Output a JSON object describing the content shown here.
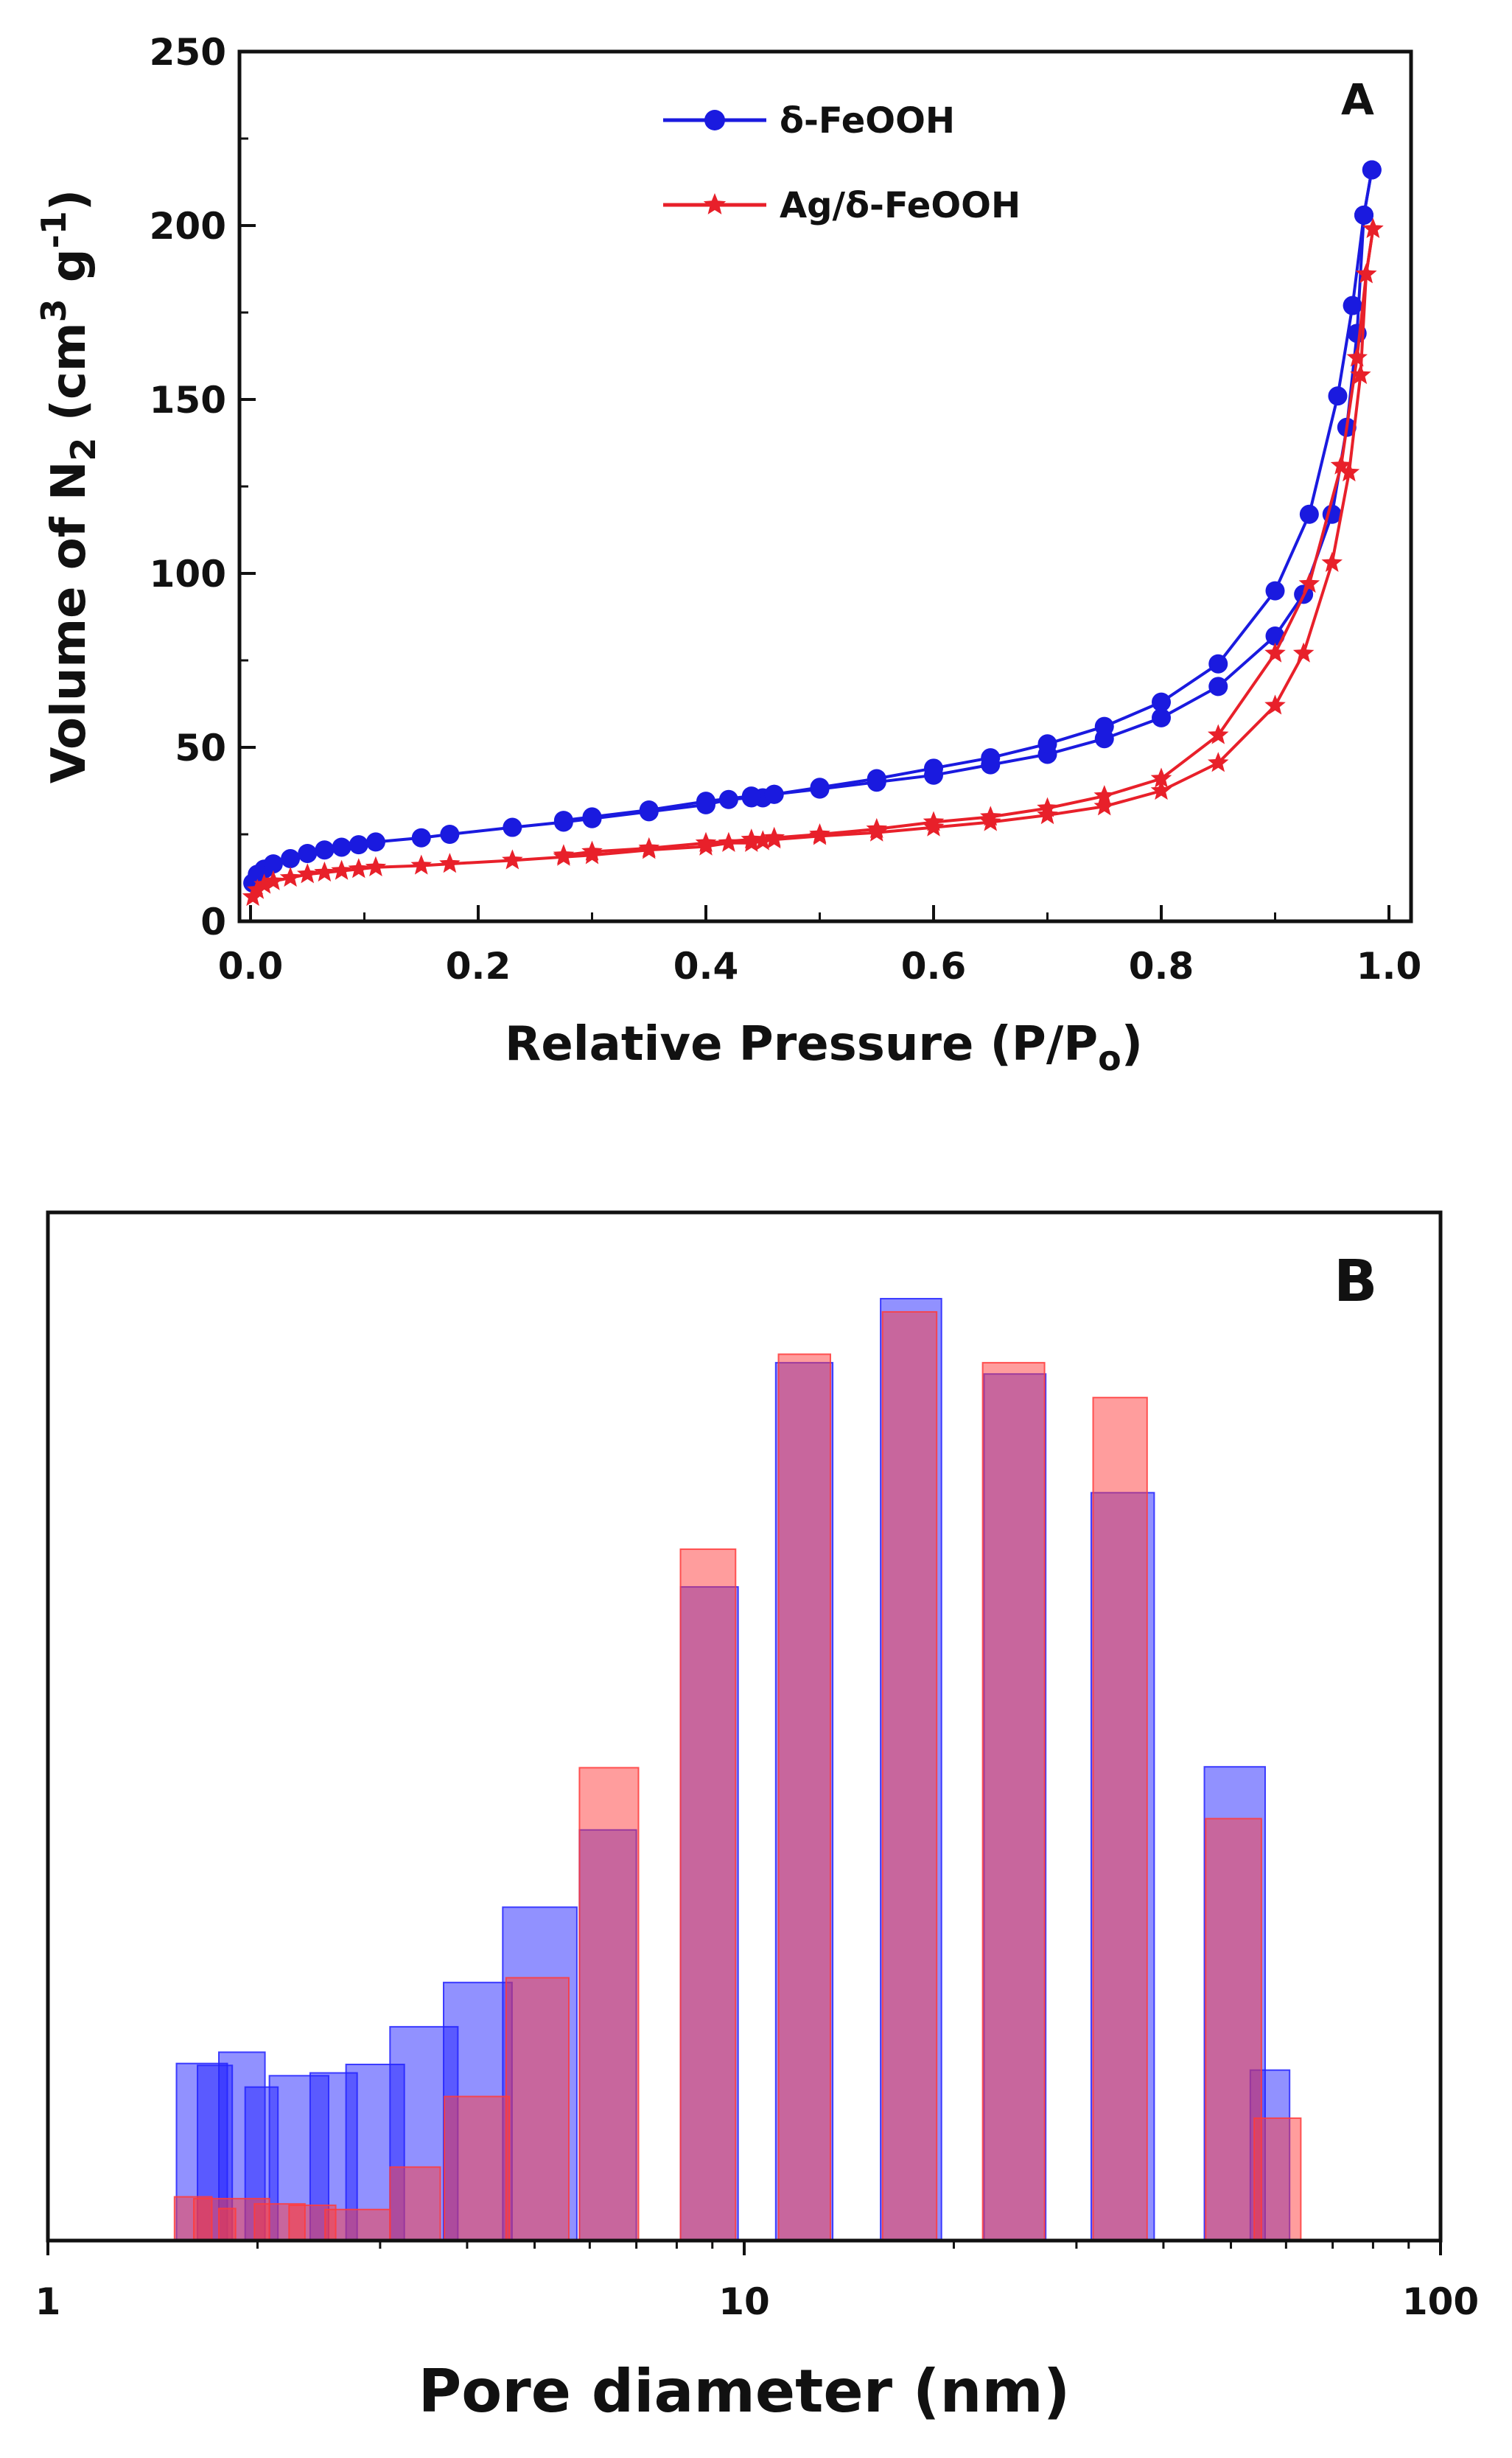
{
  "chart_data": [
    {
      "panel": "A",
      "type": "line",
      "xlabel_main": "Relative Pressure (P/P",
      "xlabel_sub": "o",
      "xlabel_end": ")",
      "ylabel_main": "Volume of N",
      "ylabel_sub": "2",
      "ylabel_mid": " (cm",
      "ylabel_sup": "3",
      "ylabel_g": " g",
      "ylabel_sup2": "-1",
      "ylabel_end": ")",
      "xlim": [
        0.0,
        1.0
      ],
      "ylim": [
        0,
        250
      ],
      "x_ticks": [
        {
          "value": 0.0,
          "label": "0.0"
        },
        {
          "value": 0.2,
          "label": "0.2"
        },
        {
          "value": 0.4,
          "label": "0.4"
        },
        {
          "value": 0.6,
          "label": "0.6"
        },
        {
          "value": 0.8,
          "label": "0.8"
        },
        {
          "value": 1.0,
          "label": "1.0"
        }
      ],
      "y_ticks": [
        {
          "value": 0,
          "label": "0"
        },
        {
          "value": 50,
          "label": "50"
        },
        {
          "value": 100,
          "label": "100"
        },
        {
          "value": 150,
          "label": "150"
        },
        {
          "value": 200,
          "label": "200"
        },
        {
          "value": 250,
          "label": "250"
        }
      ],
      "series": [
        {
          "name": "δ-FeOOH",
          "color": "#1a1adf",
          "marker": "circle",
          "adsorption": [
            [
              0.002,
              11
            ],
            [
              0.006,
              13.5
            ],
            [
              0.012,
              15
            ],
            [
              0.02,
              16.5
            ],
            [
              0.035,
              18
            ],
            [
              0.05,
              19.5
            ],
            [
              0.065,
              20.5
            ],
            [
              0.08,
              21.3
            ],
            [
              0.095,
              22
            ],
            [
              0.11,
              22.8
            ],
            [
              0.15,
              24
            ],
            [
              0.175,
              25
            ],
            [
              0.23,
              27
            ],
            [
              0.275,
              28.5
            ],
            [
              0.3,
              29.5
            ],
            [
              0.35,
              31.5
            ],
            [
              0.4,
              33.5
            ],
            [
              0.42,
              35
            ],
            [
              0.44,
              35.5
            ],
            [
              0.45,
              35.5
            ],
            [
              0.46,
              36.5
            ],
            [
              0.5,
              38
            ],
            [
              0.55,
              40
            ],
            [
              0.6,
              42
            ],
            [
              0.65,
              45
            ],
            [
              0.7,
              48
            ],
            [
              0.75,
              52.5
            ],
            [
              0.8,
              58.5
            ],
            [
              0.85,
              67.5
            ],
            [
              0.9,
              82
            ],
            [
              0.925,
              94
            ],
            [
              0.95,
              117
            ],
            [
              0.963,
              142
            ],
            [
              0.972,
              169
            ],
            [
              0.978,
              203
            ],
            [
              0.985,
              216
            ]
          ],
          "desorption": [
            [
              0.985,
              216
            ],
            [
              0.978,
              203
            ],
            [
              0.968,
              177
            ],
            [
              0.955,
              151
            ],
            [
              0.93,
              117
            ],
            [
              0.9,
              95
            ],
            [
              0.85,
              74
            ],
            [
              0.8,
              63
            ],
            [
              0.75,
              56
            ],
            [
              0.7,
              51
            ],
            [
              0.65,
              47
            ],
            [
              0.6,
              44
            ],
            [
              0.55,
              41
            ],
            [
              0.5,
              38.5
            ],
            [
              0.46,
              36.5
            ],
            [
              0.44,
              36
            ],
            [
              0.4,
              34.5
            ],
            [
              0.35,
              32
            ],
            [
              0.3,
              30
            ],
            [
              0.275,
              29
            ]
          ]
        },
        {
          "name": "Ag/δ-FeOOH",
          "color": "#e8202a",
          "marker": "star",
          "adsorption": [
            [
              0.002,
              7
            ],
            [
              0.006,
              9
            ],
            [
              0.012,
              10.5
            ],
            [
              0.02,
              11.5
            ],
            [
              0.035,
              12.5
            ],
            [
              0.05,
              13.5
            ],
            [
              0.065,
              14
            ],
            [
              0.08,
              14.5
            ],
            [
              0.095,
              15
            ],
            [
              0.11,
              15.5
            ],
            [
              0.15,
              16
            ],
            [
              0.175,
              16.5
            ],
            [
              0.23,
              17.5
            ],
            [
              0.275,
              18.5
            ],
            [
              0.3,
              19
            ],
            [
              0.35,
              20.5
            ],
            [
              0.4,
              21.5
            ],
            [
              0.42,
              22.5
            ],
            [
              0.44,
              22.5
            ],
            [
              0.45,
              23
            ],
            [
              0.46,
              23.5
            ],
            [
              0.5,
              24.5
            ],
            [
              0.55,
              25.5
            ],
            [
              0.6,
              27
            ],
            [
              0.65,
              28.5
            ],
            [
              0.7,
              30.5
            ],
            [
              0.75,
              33
            ],
            [
              0.8,
              37.5
            ],
            [
              0.85,
              45.5
            ],
            [
              0.9,
              62
            ],
            [
              0.925,
              77
            ],
            [
              0.95,
              103
            ],
            [
              0.965,
              129
            ],
            [
              0.975,
              157
            ],
            [
              0.98,
              186
            ],
            [
              0.986,
              199
            ]
          ],
          "desorption": [
            [
              0.986,
              199
            ],
            [
              0.98,
              186
            ],
            [
              0.972,
              162
            ],
            [
              0.958,
              131
            ],
            [
              0.93,
              97
            ],
            [
              0.9,
              77
            ],
            [
              0.85,
              53.5
            ],
            [
              0.8,
              41
            ],
            [
              0.75,
              36
            ],
            [
              0.7,
              32.5
            ],
            [
              0.65,
              30
            ],
            [
              0.6,
              28.5
            ],
            [
              0.55,
              26.5
            ],
            [
              0.5,
              25
            ],
            [
              0.46,
              24
            ],
            [
              0.44,
              23.5
            ],
            [
              0.4,
              22.5
            ],
            [
              0.35,
              21
            ],
            [
              0.3,
              20
            ],
            [
              0.275,
              19
            ]
          ]
        }
      ],
      "legend": [
        {
          "label": "δ-FeOOH"
        },
        {
          "label": "Ag/δ-FeOOH"
        }
      ]
    },
    {
      "panel": "B",
      "type": "bar",
      "xlabel": "Pore diameter (nm)",
      "x_scale": "log",
      "xlim": [
        1,
        100
      ],
      "x_ticks": [
        {
          "value": 1,
          "label": "1"
        },
        {
          "value": 10,
          "label": "10"
        },
        {
          "value": 100,
          "label": "100"
        }
      ],
      "ylim": [
        0,
        1
      ],
      "series": [
        {
          "name": "δ-FeOOH",
          "color": "#2323ff",
          "bars": [
            {
              "lo": 1.53,
              "hi": 1.81,
              "value": 0.188
            },
            {
              "lo": 1.64,
              "hi": 1.84,
              "value": 0.186
            },
            {
              "lo": 1.76,
              "hi": 2.05,
              "value": 0.2
            },
            {
              "lo": 1.92,
              "hi": 2.14,
              "value": 0.163
            },
            {
              "lo": 2.08,
              "hi": 2.53,
              "value": 0.175
            },
            {
              "lo": 2.38,
              "hi": 2.78,
              "value": 0.178
            },
            {
              "lo": 2.68,
              "hi": 3.25,
              "value": 0.187
            },
            {
              "lo": 3.1,
              "hi": 3.88,
              "value": 0.227
            },
            {
              "lo": 3.7,
              "hi": 4.64,
              "value": 0.274
            },
            {
              "lo": 4.5,
              "hi": 5.75,
              "value": 0.354
            },
            {
              "lo": 5.8,
              "hi": 7.0,
              "value": 0.436
            },
            {
              "lo": 8.1,
              "hi": 9.8,
              "value": 0.694
            },
            {
              "lo": 11.1,
              "hi": 13.4,
              "value": 0.932
            },
            {
              "lo": 15.7,
              "hi": 19.2,
              "value": 1.0
            },
            {
              "lo": 22.1,
              "hi": 27.1,
              "value": 0.92
            },
            {
              "lo": 31.5,
              "hi": 38.8,
              "value": 0.794
            },
            {
              "lo": 45.8,
              "hi": 56.0,
              "value": 0.503
            },
            {
              "lo": 53.3,
              "hi": 60.7,
              "value": 0.181
            }
          ]
        },
        {
          "name": "Ag/δ-FeOOH",
          "color": "#ff3b3b",
          "bars": [
            {
              "lo": 1.52,
              "hi": 1.72,
              "value": 0.0465
            },
            {
              "lo": 1.62,
              "hi": 2.08,
              "value": 0.0445
            },
            {
              "lo": 1.76,
              "hi": 1.86,
              "value": 0.034
            },
            {
              "lo": 1.98,
              "hi": 2.34,
              "value": 0.039
            },
            {
              "lo": 2.22,
              "hi": 2.59,
              "value": 0.0375
            },
            {
              "lo": 2.5,
              "hi": 3.1,
              "value": 0.033
            },
            {
              "lo": 3.1,
              "hi": 3.66,
              "value": 0.078
            },
            {
              "lo": 3.71,
              "hi": 4.6,
              "value": 0.153
            },
            {
              "lo": 4.55,
              "hi": 5.6,
              "value": 0.279
            },
            {
              "lo": 5.8,
              "hi": 7.05,
              "value": 0.502
            },
            {
              "lo": 8.1,
              "hi": 9.72,
              "value": 0.734
            },
            {
              "lo": 11.2,
              "hi": 13.3,
              "value": 0.941
            },
            {
              "lo": 15.8,
              "hi": 18.9,
              "value": 0.986
            },
            {
              "lo": 22.0,
              "hi": 27.0,
              "value": 0.932
            },
            {
              "lo": 31.7,
              "hi": 37.9,
              "value": 0.895
            },
            {
              "lo": 46.0,
              "hi": 55.3,
              "value": 0.448
            },
            {
              "lo": 54.0,
              "hi": 63.0,
              "value": 0.13
            }
          ]
        }
      ]
    }
  ]
}
